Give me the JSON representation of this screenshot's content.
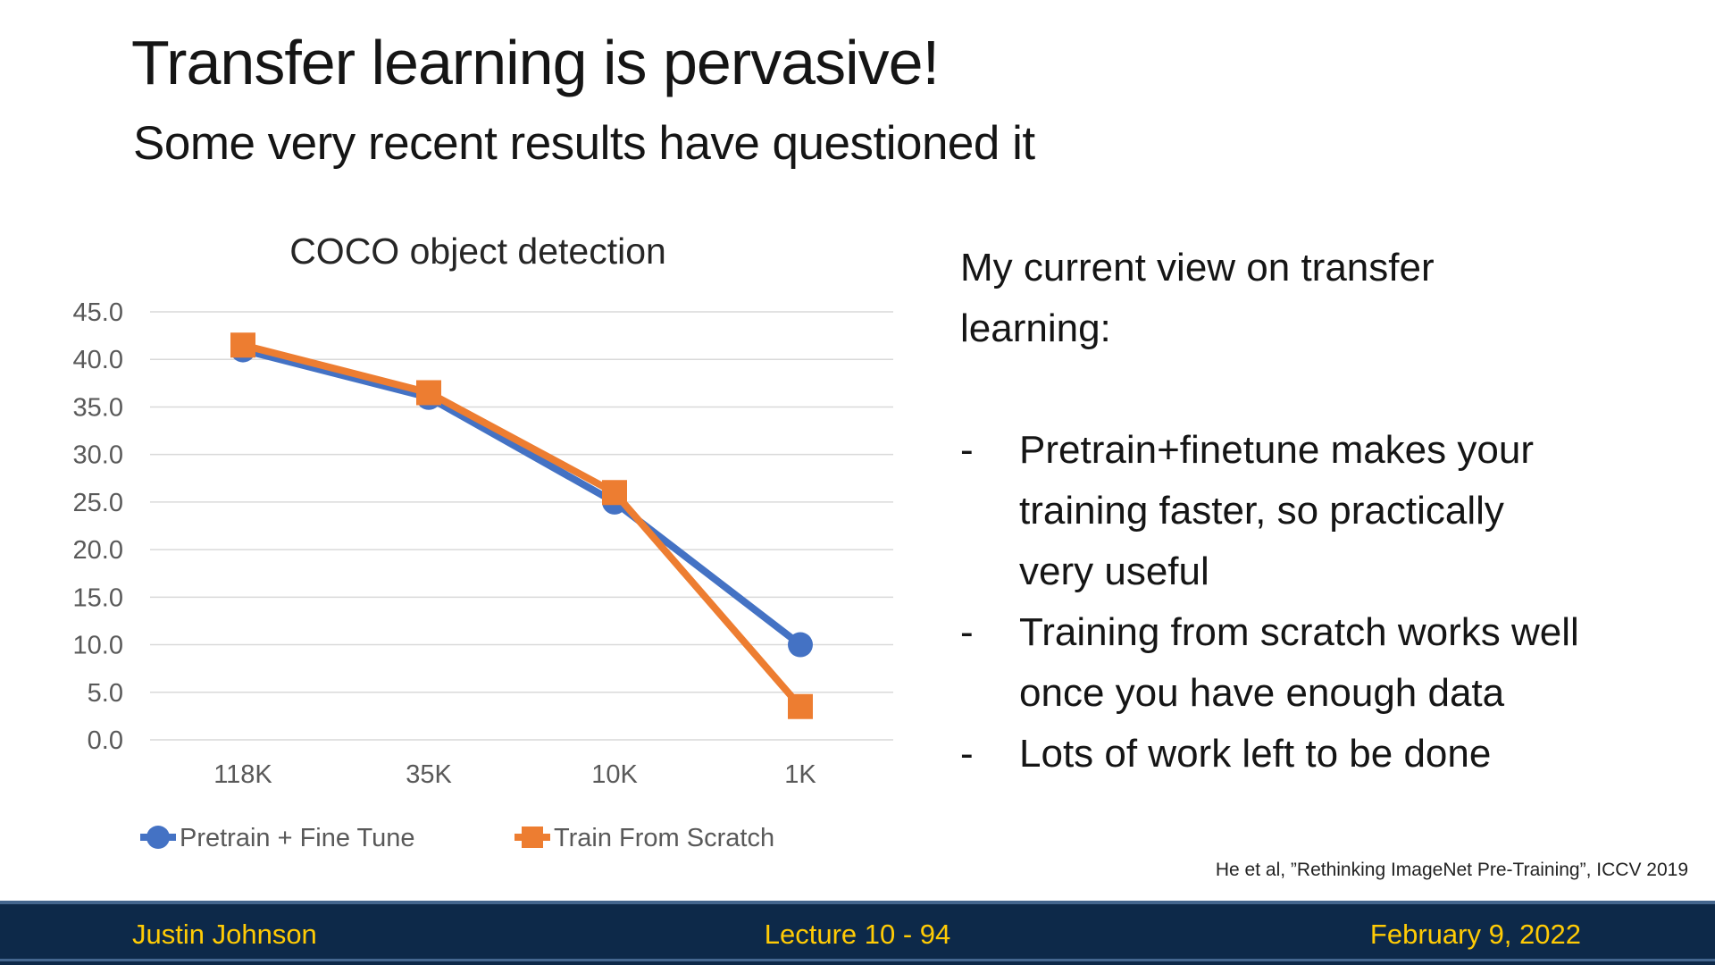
{
  "slide": {
    "title": "Transfer learning is pervasive!",
    "subtitle": "Some very recent results have questioned it",
    "citation": "He et al, ”Rethinking ImageNet Pre-Training”, ICCV 2019"
  },
  "commentary": {
    "intro": "My current view on transfer\nlearning:",
    "bullet_marker": "-",
    "bullets": [
      "Pretrain+finetune makes your\ntraining faster, so practically\nvery useful",
      "Training from scratch works well\nonce you have enough data",
      "Lots of work left to be done"
    ]
  },
  "footer": {
    "author": "Justin Johnson",
    "lecture": "Lecture 10 - 94",
    "date": "February 9, 2022",
    "bg_color": "#0d2949",
    "accent_color": "#44668e",
    "text_color": "#FFCB05"
  },
  "chart_data": {
    "type": "line",
    "title": "COCO object detection",
    "categories": [
      "118K",
      "35K",
      "10K",
      "1K"
    ],
    "series": [
      {
        "name": "Pretrain + Fine Tune",
        "color": "#4472C4",
        "marker": "circle",
        "values": [
          41.0,
          36.0,
          25.0,
          10.0
        ]
      },
      {
        "name": "Train From Scratch",
        "color": "#ED7D31",
        "marker": "square",
        "values": [
          41.5,
          36.5,
          26.0,
          3.5
        ]
      }
    ],
    "ylim": [
      0,
      45
    ],
    "ytick_step": 5,
    "ytick_labels": [
      "0.0",
      "5.0",
      "10.0",
      "15.0",
      "20.0",
      "25.0",
      "30.0",
      "35.0",
      "40.0",
      "45.0"
    ],
    "grid": true,
    "legend_position": "bottom",
    "title_color": "#262626",
    "axis_text_color": "#595959",
    "grid_color": "#d9d9d9"
  }
}
